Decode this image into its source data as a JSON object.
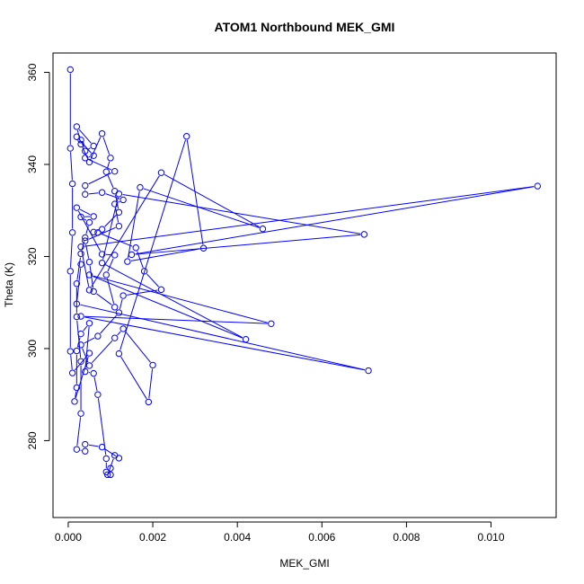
{
  "chart_data": {
    "type": "line",
    "title": "ATOM1 Northbound MEK_GMI",
    "xlabel": "MEK_GMI",
    "ylabel": "Theta (K)",
    "xlim": [
      -0.00036,
      0.01154
    ],
    "ylim": [
      263.3,
      364.2
    ],
    "xticks": [
      0.0,
      0.002,
      0.004,
      0.006,
      0.008,
      0.01
    ],
    "xtick_labels": [
      "0.000",
      "0.002",
      "0.004",
      "0.006",
      "0.008",
      "0.010"
    ],
    "yticks": [
      280,
      300,
      320,
      340,
      360
    ],
    "ytick_labels": [
      "280",
      "300",
      "320",
      "340",
      "360"
    ],
    "grid": false,
    "series": [
      {
        "color": "#0000ff",
        "marker": "open-circle",
        "points": [
          [
            5e-05,
            360.6
          ],
          [
            5e-05,
            343.5
          ],
          [
            0.0001,
            335.8
          ],
          [
            0.0001,
            325.2
          ],
          [
            5e-05,
            316.8
          ],
          [
            5e-05,
            299.4
          ],
          [
            0.0001,
            294.7
          ],
          [
            0.0005,
            299.0
          ],
          [
            0.00015,
            288.5
          ],
          [
            0.0002,
            291.5
          ],
          [
            0.0002,
            299.5
          ],
          [
            0.0003,
            303.2
          ],
          [
            0.0005,
            305.5
          ],
          [
            0.0004,
            295.0
          ],
          [
            0.0006,
            294.6
          ],
          [
            0.0007,
            290.0
          ],
          [
            0.0009,
            276.1
          ],
          [
            0.0009,
            273.2
          ],
          [
            0.001,
            274.0
          ],
          [
            0.001,
            272.6
          ],
          [
            0.00093,
            272.6
          ],
          [
            0.0011,
            276.8
          ],
          [
            0.0012,
            276.2
          ],
          [
            0.0008,
            278.6
          ],
          [
            0.0004,
            279.2
          ],
          [
            0.0004,
            277.7
          ],
          [
            0.0002,
            278.1
          ],
          [
            0.0003,
            285.9
          ],
          [
            0.0003,
            297.2
          ],
          [
            0.0002,
            306.9
          ],
          [
            0.0002,
            314.1
          ],
          [
            0.0003,
            320.6
          ],
          [
            0.0004,
            324.1
          ],
          [
            0.0005,
            327.4
          ],
          [
            0.0003,
            328.6
          ],
          [
            0.0006,
            328.7
          ],
          [
            0.0002,
            330.6
          ],
          [
            0.0008,
            320.5
          ],
          [
            0.0011,
            320.3
          ],
          [
            0.0009,
            316.0
          ],
          [
            0.0011,
            309.0
          ],
          [
            0.0006,
            312.4
          ],
          [
            0.0005,
            318.8
          ],
          [
            0.0004,
            323.4
          ],
          [
            0.0012,
            326.6
          ],
          [
            0.0011,
            331.4
          ],
          [
            0.0013,
            332.3
          ],
          [
            0.0008,
            333.9
          ],
          [
            0.0004,
            333.5
          ],
          [
            0.0004,
            335.4
          ],
          [
            0.0011,
            338.5
          ],
          [
            0.0004,
            341.4
          ],
          [
            0.0006,
            341.9
          ],
          [
            0.0002,
            346.0
          ],
          [
            0.0003,
            345.3
          ],
          [
            0.0004,
            342.9
          ],
          [
            0.0006,
            344.0
          ],
          [
            0.0002,
            348.2
          ],
          [
            0.0003,
            344.4
          ],
          [
            0.0005,
            340.5
          ],
          [
            0.0008,
            346.7
          ],
          [
            0.001,
            341.4
          ],
          [
            0.0009,
            338.4
          ],
          [
            0.0011,
            334.2
          ],
          [
            0.0012,
            329.6
          ],
          [
            0.0008,
            325.9
          ],
          [
            0.0006,
            325.3
          ],
          [
            0.0007,
            325.2
          ],
          [
            0.0016,
            321.9
          ],
          [
            0.0018,
            316.8
          ],
          [
            0.0022,
            312.8
          ],
          [
            0.0013,
            311.5
          ],
          [
            0.0012,
            307.8
          ],
          [
            0.0007,
            302.7
          ],
          [
            0.0003,
            300.8
          ],
          [
            0.0005,
            296.3
          ],
          [
            0.0011,
            302.3
          ],
          [
            0.0013,
            304.3
          ],
          [
            0.002,
            296.4
          ],
          [
            0.0019,
            288.4
          ],
          [
            0.0012,
            298.9
          ],
          [
            0.0028,
            346.1
          ],
          [
            0.0032,
            321.8
          ],
          [
            0.0014,
            318.9
          ],
          [
            0.0017,
            335.0
          ],
          [
            0.0046,
            326.0
          ],
          [
            0.0022,
            338.2
          ],
          [
            0.0005,
            312.7
          ],
          [
            0.0003,
            322.1
          ],
          [
            0.0111,
            335.3
          ],
          [
            0.0015,
            320.4
          ],
          [
            0.007,
            324.8
          ],
          [
            0.0012,
            333.6
          ],
          [
            0.0008,
            318.6
          ],
          [
            0.0042,
            302.0
          ],
          [
            0.0005,
            316.0
          ],
          [
            0.0048,
            305.4
          ],
          [
            0.0003,
            307.0
          ],
          [
            0.0071,
            295.2
          ],
          [
            0.0002,
            309.7
          ],
          [
            0.0003,
            318.3
          ]
        ]
      }
    ]
  }
}
